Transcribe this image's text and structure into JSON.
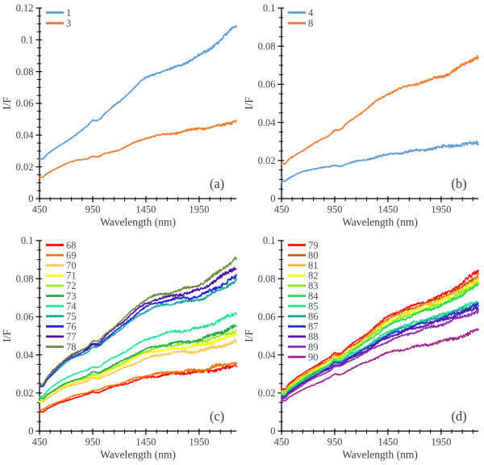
{
  "figure": {
    "background": "#ffffff",
    "axis_color": "#000000",
    "tick_text_color": "#404040"
  },
  "chart_data": [
    {
      "type": "line",
      "panel_label": "(a)",
      "xlabel": "Wavelength (nm)",
      "ylabel": "I/F",
      "xlim": [
        450,
        2300
      ],
      "ylim": [
        0,
        0.12
      ],
      "xtick_values": [
        450,
        950,
        1450,
        1950
      ],
      "xtick_labels": [
        "450",
        "950",
        "1450",
        "1950"
      ],
      "ytick_values": [
        0,
        0.02,
        0.04,
        0.06,
        0.08,
        0.1,
        0.12
      ],
      "ytick_labels": [
        "0",
        "0.02",
        "0.04",
        "0.06",
        "0.08",
        "0.1",
        "0.12"
      ],
      "x_minor_step": 100,
      "y_minor_step": 0.005,
      "legend_position": "top-left",
      "grid": false,
      "x_control": [
        450,
        700,
        950,
        1200,
        1450,
        1700,
        1950,
        2100,
        2300
      ],
      "series": [
        {
          "name": "1",
          "color": "#5B9BD5",
          "values": [
            0.025,
            0.036,
            0.048,
            0.061,
            0.076,
            0.082,
            0.09,
            0.097,
            0.109
          ]
        },
        {
          "name": "3",
          "color": "#ED7D31",
          "values": [
            0.013,
            0.022,
            0.026,
            0.031,
            0.038,
            0.041,
            0.044,
            0.045,
            0.049
          ]
        }
      ]
    },
    {
      "type": "line",
      "panel_label": "(b)",
      "xlabel": "Wavelength (nm)",
      "ylabel": "I/F",
      "xlim": [
        450,
        2300
      ],
      "ylim": [
        0,
        0.1
      ],
      "xtick_values": [
        450,
        950,
        1450,
        1950
      ],
      "xtick_labels": [
        "450",
        "950",
        "1450",
        "1950"
      ],
      "ytick_values": [
        0,
        0.02,
        0.04,
        0.06,
        0.08,
        0.1
      ],
      "ytick_labels": [
        "0",
        "0.02",
        "0.04",
        "0.06",
        "0.08",
        "0.1"
      ],
      "x_minor_step": 100,
      "y_minor_step": 0.005,
      "legend_position": "top-left",
      "grid": false,
      "x_control": [
        450,
        700,
        950,
        1200,
        1450,
        1700,
        1950,
        2100,
        2300
      ],
      "series": [
        {
          "name": "4",
          "color": "#5B9BD5",
          "values": [
            0.009,
            0.015,
            0.017,
            0.02,
            0.023,
            0.025,
            0.027,
            0.028,
            0.029
          ]
        },
        {
          "name": "8",
          "color": "#ED7D31",
          "values": [
            0.018,
            0.027,
            0.035,
            0.045,
            0.055,
            0.06,
            0.064,
            0.068,
            0.075
          ]
        }
      ]
    },
    {
      "type": "line",
      "panel_label": "(c)",
      "xlabel": "Wavelength (nm)",
      "ylabel": "I/F",
      "xlim": [
        450,
        2300
      ],
      "ylim": [
        0,
        0.1
      ],
      "xtick_values": [
        450,
        950,
        1450,
        1950
      ],
      "xtick_labels": [
        "450",
        "950",
        "1450",
        "1950"
      ],
      "ytick_values": [
        0,
        0.02,
        0.04,
        0.06,
        0.08,
        0.1
      ],
      "ytick_labels": [
        "0",
        "0.02",
        "0.04",
        "0.06",
        "0.08",
        "0.1"
      ],
      "x_minor_step": 100,
      "y_minor_step": 0.005,
      "legend_position": "top-left",
      "grid": false,
      "x_control": [
        450,
        700,
        950,
        1200,
        1450,
        1700,
        1950,
        2100,
        2300
      ],
      "series": [
        {
          "name": "68",
          "color": "#FF0000",
          "values": [
            0.01,
            0.016,
            0.02,
            0.024,
            0.028,
            0.03,
            0.031,
            0.032,
            0.034
          ]
        },
        {
          "name": "69",
          "color": "#FF7300",
          "values": [
            0.011,
            0.017,
            0.021,
            0.025,
            0.029,
            0.031,
            0.032,
            0.034,
            0.036
          ]
        },
        {
          "name": "70",
          "color": "#FFC855",
          "values": [
            0.015,
            0.023,
            0.027,
            0.032,
            0.038,
            0.041,
            0.042,
            0.044,
            0.047
          ]
        },
        {
          "name": "71",
          "color": "#FFFF00",
          "values": [
            0.016,
            0.024,
            0.028,
            0.034,
            0.041,
            0.043,
            0.045,
            0.047,
            0.051
          ]
        },
        {
          "name": "72",
          "color": "#9BEE1C",
          "values": [
            0.016,
            0.025,
            0.029,
            0.035,
            0.042,
            0.045,
            0.047,
            0.049,
            0.053
          ]
        },
        {
          "name": "73",
          "color": "#21A848",
          "values": [
            0.017,
            0.025,
            0.03,
            0.036,
            0.043,
            0.046,
            0.048,
            0.051,
            0.055
          ]
        },
        {
          "name": "74",
          "color": "#1FE596",
          "values": [
            0.018,
            0.028,
            0.033,
            0.04,
            0.048,
            0.052,
            0.054,
            0.057,
            0.062
          ]
        },
        {
          "name": "75",
          "color": "#1CA6A6",
          "values": [
            0.023,
            0.036,
            0.043,
            0.053,
            0.063,
            0.067,
            0.069,
            0.073,
            0.079
          ]
        },
        {
          "name": "76",
          "color": "#2326D8",
          "values": [
            0.023,
            0.037,
            0.044,
            0.054,
            0.065,
            0.069,
            0.071,
            0.075,
            0.081
          ]
        },
        {
          "name": "77",
          "color": "#4A10A0",
          "values": [
            0.024,
            0.038,
            0.045,
            0.056,
            0.067,
            0.071,
            0.074,
            0.079,
            0.086
          ]
        },
        {
          "name": "78",
          "color": "#6C8C3F",
          "values": [
            0.024,
            0.038,
            0.046,
            0.057,
            0.069,
            0.073,
            0.077,
            0.082,
            0.091
          ]
        }
      ]
    },
    {
      "type": "line",
      "panel_label": "(d)",
      "xlabel": "Wavelength (nm)",
      "ylabel": "I/F",
      "xlim": [
        450,
        2300
      ],
      "ylim": [
        0,
        0.1
      ],
      "xtick_values": [
        450,
        950,
        1450,
        1950
      ],
      "xtick_labels": [
        "450",
        "950",
        "1450",
        "1950"
      ],
      "ytick_values": [
        0,
        0.02,
        0.04,
        0.06,
        0.08,
        0.1
      ],
      "ytick_labels": [
        "0",
        "0.02",
        "0.04",
        "0.06",
        "0.08",
        "0.1"
      ],
      "x_minor_step": 100,
      "y_minor_step": 0.005,
      "legend_position": "top-left",
      "grid": false,
      "x_control": [
        450,
        700,
        950,
        1200,
        1450,
        1700,
        1950,
        2100,
        2300
      ],
      "series": [
        {
          "name": "79",
          "color": "#FF0A0A",
          "values": [
            0.022,
            0.032,
            0.04,
            0.049,
            0.06,
            0.066,
            0.071,
            0.076,
            0.084
          ]
        },
        {
          "name": "80",
          "color": "#C55A11",
          "values": [
            0.021,
            0.031,
            0.039,
            0.048,
            0.059,
            0.065,
            0.07,
            0.074,
            0.082
          ]
        },
        {
          "name": "81",
          "color": "#FFB833",
          "values": [
            0.021,
            0.031,
            0.038,
            0.047,
            0.058,
            0.064,
            0.069,
            0.073,
            0.08
          ]
        },
        {
          "name": "82",
          "color": "#FFFF05",
          "values": [
            0.02,
            0.03,
            0.038,
            0.046,
            0.057,
            0.063,
            0.068,
            0.072,
            0.079
          ]
        },
        {
          "name": "83",
          "color": "#8EE81C",
          "values": [
            0.02,
            0.029,
            0.037,
            0.046,
            0.056,
            0.062,
            0.067,
            0.071,
            0.078
          ]
        },
        {
          "name": "84",
          "color": "#2BD94F",
          "values": [
            0.019,
            0.029,
            0.036,
            0.045,
            0.055,
            0.061,
            0.066,
            0.07,
            0.077
          ]
        },
        {
          "name": "85",
          "color": "#1FE288",
          "values": [
            0.019,
            0.028,
            0.036,
            0.043,
            0.052,
            0.057,
            0.061,
            0.064,
            0.068
          ]
        },
        {
          "name": "86",
          "color": "#1CA6A6",
          "values": [
            0.018,
            0.028,
            0.035,
            0.042,
            0.051,
            0.056,
            0.06,
            0.063,
            0.067
          ]
        },
        {
          "name": "87",
          "color": "#2433CC",
          "values": [
            0.018,
            0.027,
            0.035,
            0.042,
            0.05,
            0.055,
            0.059,
            0.062,
            0.066
          ]
        },
        {
          "name": "88",
          "color": "#5511AA",
          "values": [
            0.017,
            0.027,
            0.034,
            0.041,
            0.049,
            0.054,
            0.058,
            0.061,
            0.065
          ]
        },
        {
          "name": "89",
          "color": "#8A2FAD",
          "values": [
            0.017,
            0.026,
            0.033,
            0.04,
            0.047,
            0.052,
            0.056,
            0.059,
            0.063
          ]
        },
        {
          "name": "90",
          "color": "#A02189",
          "values": [
            0.016,
            0.023,
            0.029,
            0.035,
            0.041,
            0.044,
            0.047,
            0.049,
            0.053
          ]
        }
      ]
    }
  ]
}
